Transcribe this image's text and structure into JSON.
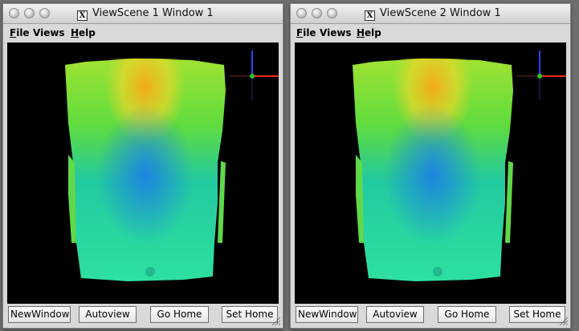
{
  "windows": [
    {
      "title": "ViewScene 1 Window 1",
      "menu": [
        {
          "mnemonic": "F",
          "rest": "ile"
        },
        {
          "mnemonic": "",
          "rest": "Views"
        },
        {
          "mnemonic": "H",
          "rest": "elp"
        }
      ],
      "buttons": [
        "NewWindow",
        "Autoview",
        "Go Home",
        "Set Home"
      ]
    },
    {
      "title": "ViewScene 2 Window 1",
      "menu": [
        {
          "mnemonic": "F",
          "rest": "ile"
        },
        {
          "mnemonic": "",
          "rest": "Views"
        },
        {
          "mnemonic": "H",
          "rest": "elp"
        }
      ],
      "buttons": [
        "NewWindow",
        "Autoview",
        "Go Home",
        "Set Home"
      ]
    }
  ],
  "scene": {
    "background": "#000000",
    "colors": {
      "top": "#f3b21a",
      "mid": "#7ee33a",
      "center": "#1d8fe0",
      "bottom": "#30d99a"
    },
    "axes": {
      "x": "#ff2a1a",
      "y": "#28c828",
      "z": "#2a44ff"
    }
  }
}
